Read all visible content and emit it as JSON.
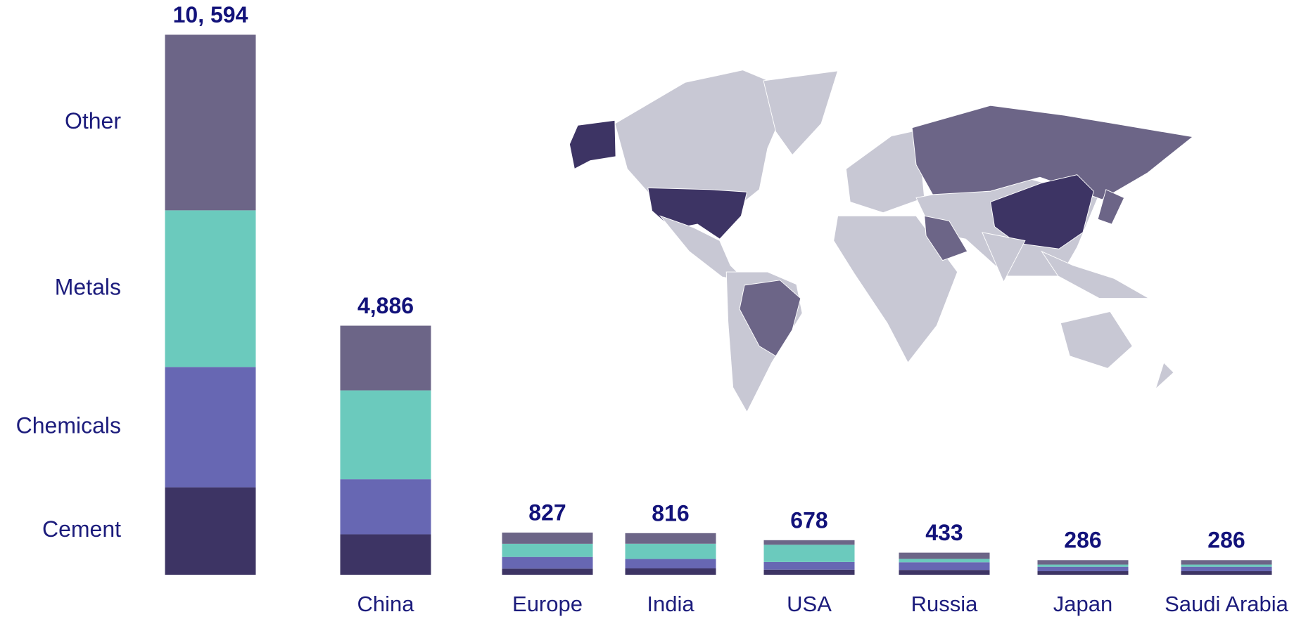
{
  "chart_data": {
    "type": "stacked_bar",
    "categories": [
      null,
      "China",
      "Europe",
      "India",
      "USA",
      "Russia",
      "Japan",
      "Saudi Arabia"
    ],
    "series": [
      {
        "name": "Cement",
        "color": "#3d3464",
        "values": [
          1715,
          793,
          120,
          124,
          100,
          94,
          69,
          69
        ]
      },
      {
        "name": "Chemicals",
        "color": "#6767b3",
        "values": [
          2361,
          1080,
          229,
          185,
          150,
          151,
          87,
          87
        ]
      },
      {
        "name": "Metals",
        "color": "#6bcabd",
        "values": [
          3073,
          1744,
          259,
          300,
          338,
          66,
          43,
          43
        ]
      },
      {
        "name": "Other",
        "color": "#6c6587",
        "values": [
          3445,
          1269,
          219,
          207,
          90,
          122,
          87,
          87
        ]
      }
    ],
    "totals": [
      10594,
      4886,
      827,
      816,
      678,
      433,
      286,
      286
    ],
    "total_labels": [
      "10, 594",
      "4,886",
      "827",
      "816",
      "678",
      "433",
      "286",
      "286"
    ],
    "ylim": [
      0,
      10600
    ]
  }
}
